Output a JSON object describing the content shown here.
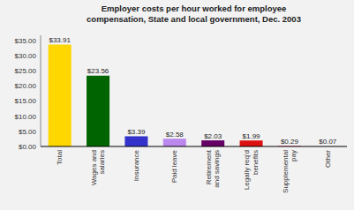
{
  "chart_data": {
    "type": "bar",
    "title": "Employer costs per hour worked for employee\ncompensation, State and local government, Dec. 2003",
    "categories": [
      "Total",
      "Wages and\nsalaries",
      "Insurance",
      "Paid leave",
      "Retirement\nand savings",
      "Legally req'd\nbenefits",
      "Supplemental\npay",
      "Other"
    ],
    "values": [
      33.91,
      23.56,
      3.39,
      2.58,
      2.03,
      1.99,
      0.29,
      0.07
    ],
    "value_labels": [
      "$33.91",
      "$23.56",
      "$3.39",
      "$2.58",
      "$2.03",
      "$1.99",
      "$0.29",
      "$0.07"
    ],
    "colors": [
      "#FFD700",
      "#006400",
      "#3333CC",
      "#BB88EE",
      "#660066",
      "#DD1111",
      "#FF88AA",
      "#C8C8C8"
    ],
    "data_labels": true,
    "grid": false,
    "ylim": [
      0,
      37
    ],
    "yticks": [
      {
        "value": 0,
        "label": "$0.00"
      },
      {
        "value": 5,
        "label": "$5.00"
      },
      {
        "value": 10,
        "label": "$10.00"
      },
      {
        "value": 15,
        "label": "$15.00"
      },
      {
        "value": 20,
        "label": "$20.00"
      },
      {
        "value": 25,
        "label": "$25.00"
      },
      {
        "value": 30,
        "label": "$30.00"
      },
      {
        "value": 35,
        "label": "$35.00"
      }
    ]
  }
}
